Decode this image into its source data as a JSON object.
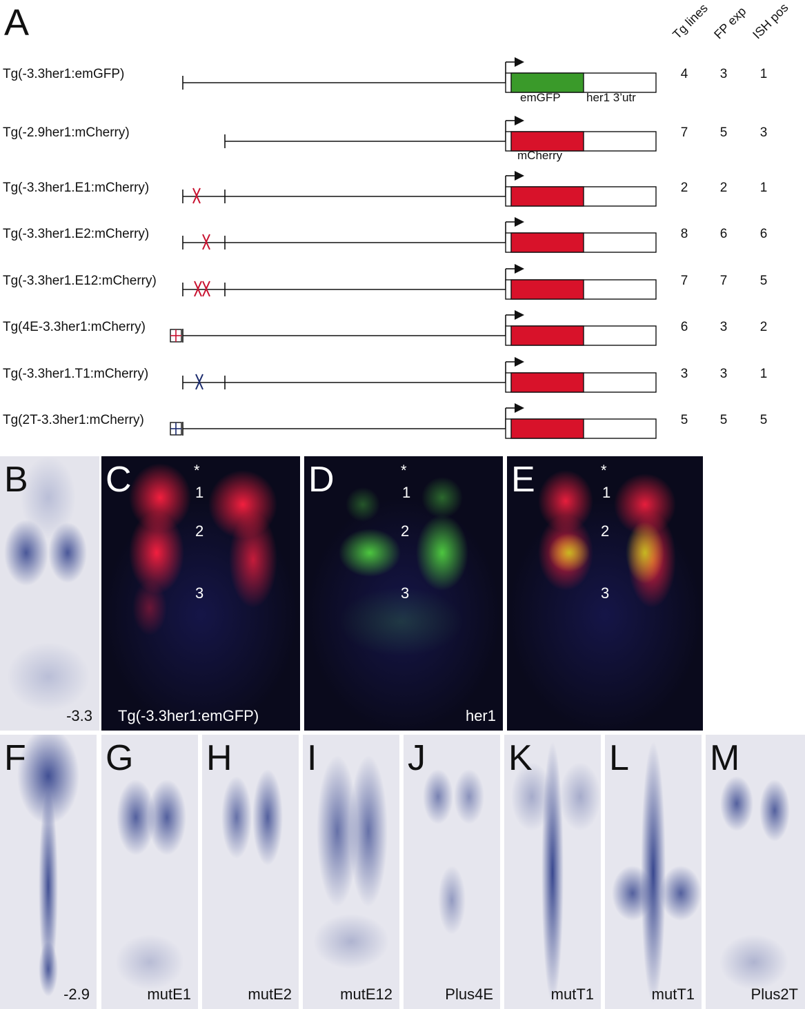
{
  "panel_a": {
    "letter": "A",
    "col_headers": [
      "Tg lines",
      "FP exp",
      "ISH pos"
    ],
    "gene_labels": {
      "emgfp": "emGFP",
      "utr": "her1 3’utr",
      "mcherry": "mCherry"
    },
    "constructs": [
      {
        "label": "Tg(-3.3her1:emGFP)",
        "counts": [
          "4",
          "3",
          "1"
        ],
        "reporter": "emGFP",
        "reporter_color": "#3a9a2a"
      },
      {
        "label": "Tg(-2.9her1:mCherry)",
        "counts": [
          "7",
          "5",
          "3"
        ],
        "reporter": "mCherry",
        "reporter_color": "#d8122a"
      },
      {
        "label": "Tg(-3.3her1.E1:mCherry)",
        "counts": [
          "2",
          "2",
          "1"
        ],
        "reporter": "mCherry",
        "reporter_color": "#d8122a"
      },
      {
        "label": "Tg(-3.3her1.E2:mCherry)",
        "counts": [
          "8",
          "6",
          "6"
        ],
        "reporter": "mCherry",
        "reporter_color": "#d8122a"
      },
      {
        "label": "Tg(-3.3her1.E12:mCherry)",
        "counts": [
          "7",
          "7",
          "5"
        ],
        "reporter": "mCherry",
        "reporter_color": "#d8122a"
      },
      {
        "label": "Tg(4E-3.3her1:mCherry)",
        "counts": [
          "6",
          "3",
          "2"
        ],
        "reporter": "mCherry",
        "reporter_color": "#d8122a"
      },
      {
        "label": "Tg(-3.3her1.T1:mCherry)",
        "counts": [
          "3",
          "3",
          "1"
        ],
        "reporter": "mCherry",
        "reporter_color": "#d8122a"
      },
      {
        "label": "Tg(2T-3.3her1:mCherry)",
        "counts": [
          "5",
          "5",
          "5"
        ],
        "reporter": "mCherry",
        "reporter_color": "#d8122a"
      }
    ],
    "mutation_colors": {
      "e_box": "#c8102e",
      "t_box": "#1a2a6c"
    }
  },
  "panels_middle": [
    {
      "letter": "B",
      "caption": "-3.3",
      "type": "ish"
    },
    {
      "letter": "C",
      "caption": "Tg(-3.3her1:emGFP)",
      "type": "fluor",
      "somites": [
        "*",
        "1",
        "2",
        "3"
      ]
    },
    {
      "letter": "D",
      "caption": "her1",
      "type": "fluor",
      "somites": [
        "*",
        "1",
        "2",
        "3"
      ]
    },
    {
      "letter": "E",
      "caption": "",
      "type": "fluor",
      "somites": [
        "*",
        "1",
        "2",
        "3"
      ]
    }
  ],
  "panels_bottom": [
    {
      "letter": "F",
      "caption": "-2.9"
    },
    {
      "letter": "G",
      "caption": "mutE1"
    },
    {
      "letter": "H",
      "caption": "mutE2"
    },
    {
      "letter": "I",
      "caption": "mutE12"
    },
    {
      "letter": "J",
      "caption": "Plus4E"
    },
    {
      "letter": "K",
      "caption": "mutT1"
    },
    {
      "letter": "L",
      "caption": "mutT1"
    },
    {
      "letter": "M",
      "caption": "Plus2T"
    }
  ],
  "colors": {
    "ish_bg": "#e6e6ee",
    "ish_stain": "#2f3f8a",
    "fluor_bg": "#0a0a1a",
    "red_signal": "#e0203a",
    "green_signal": "#40c040"
  }
}
